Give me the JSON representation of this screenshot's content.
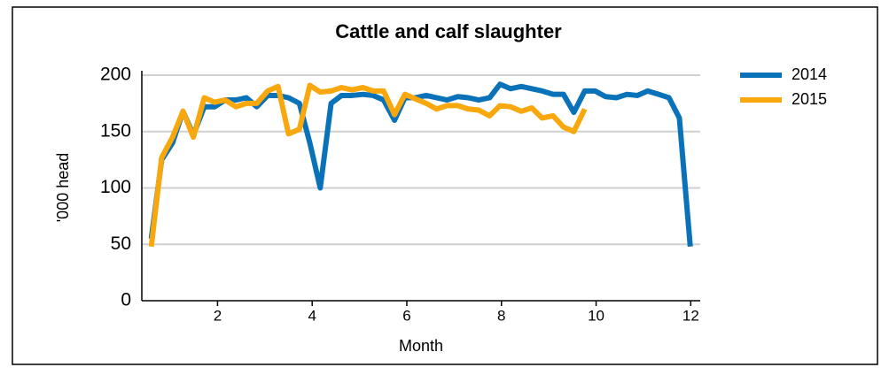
{
  "chart_data": {
    "type": "line",
    "title": "Cattle and calf slaughter",
    "x_label": "Month",
    "y_label": "'000 head",
    "x": [
      0.6,
      0.82,
      1.05,
      1.27,
      1.49,
      1.72,
      1.94,
      2.16,
      2.39,
      2.61,
      2.83,
      3.06,
      3.28,
      3.5,
      3.73,
      3.95,
      4.17,
      4.4,
      4.62,
      4.84,
      5.07,
      5.29,
      5.51,
      5.74,
      5.96,
      6.18,
      6.41,
      6.63,
      6.85,
      7.08,
      7.3,
      7.52,
      7.75,
      7.97,
      8.19,
      8.42,
      8.64,
      8.86,
      9.09,
      9.31,
      9.53,
      9.76,
      9.98,
      10.2,
      10.43,
      10.65,
      10.87,
      11.09,
      11.32,
      11.54,
      11.76,
      11.99
    ],
    "series": [
      {
        "name": "2014",
        "color": "#0a72b8",
        "values": [
          55,
          125,
          140,
          168,
          147,
          172,
          172,
          178,
          178,
          180,
          172,
          182,
          182,
          180,
          175,
          140,
          100,
          175,
          182,
          182,
          183,
          182,
          178,
          160,
          180,
          180,
          182,
          180,
          178,
          181,
          180,
          178,
          180,
          192,
          188,
          190,
          188,
          186,
          183,
          183,
          167,
          186,
          186,
          181,
          180,
          183,
          182,
          186,
          183,
          180,
          162,
          48
        ]
      },
      {
        "name": "2015",
        "color": "#f8a80c",
        "values": [
          48,
          127,
          145,
          168,
          145,
          180,
          176,
          178,
          172,
          175,
          175,
          186,
          190,
          148,
          152,
          191,
          185,
          186,
          189,
          187,
          189,
          186,
          186,
          165,
          183,
          179,
          175,
          170,
          173,
          173,
          170,
          169,
          164,
          173,
          172,
          168,
          171,
          162,
          164,
          154,
          150,
          170,
          null,
          null,
          null,
          null,
          null,
          null,
          null,
          null,
          null,
          null
        ]
      }
    ],
    "xlim": [
      0.4,
      12.2
    ],
    "xticks": [
      2,
      4,
      6,
      8,
      10,
      12
    ],
    "ylim": [
      0,
      200
    ],
    "yticks": [
      0,
      50,
      100,
      150,
      200
    ],
    "grid": true,
    "legend": "right"
  }
}
